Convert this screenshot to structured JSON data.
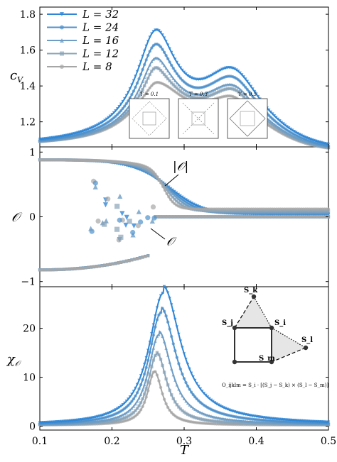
{
  "chart_data": [
    {
      "type": "line",
      "panel": "top",
      "ylabel": "c_V",
      "xlim": [
        0.1,
        0.5
      ],
      "ylim": [
        1.06,
        1.84
      ],
      "yticks": [
        "1.2",
        "1.4",
        "1.6",
        "1.8"
      ],
      "legend_position": "top-left",
      "series": [
        {
          "name": "L = 32",
          "color": "#2f86d6",
          "marker": "triangle-down",
          "peak1": 1.8,
          "peak2": 1.53
        },
        {
          "name": "L = 24",
          "color": "#4f92cc",
          "marker": "circle",
          "peak1": 1.73,
          "peak2": 1.49
        },
        {
          "name": "L = 16",
          "color": "#6d9cc4",
          "marker": "triangle-up",
          "peak1": 1.66,
          "peak2": 1.45
        },
        {
          "name": "L = 12",
          "color": "#8aa4b8",
          "marker": "square",
          "peak1": 1.61,
          "peak2": 1.43
        },
        {
          "name": "L = 8",
          "color": "#a6a6a6",
          "marker": "circle",
          "peak1": 1.53,
          "peak2": 1.39
        }
      ],
      "insets": [
        {
          "label": "T = 0.1"
        },
        {
          "label": "T = 0.3"
        },
        {
          "label": "T = 0.5"
        }
      ]
    },
    {
      "type": "scatter",
      "panel": "middle",
      "ylabel": "O",
      "xlim": [
        0.1,
        0.5
      ],
      "ylim": [
        -1.08,
        1.08
      ],
      "yticks": [
        "−1",
        "0",
        "1"
      ],
      "annotations": [
        "|O|",
        "O"
      ],
      "abs_O_high_T": {
        "L = 32": 0.04,
        "L = 24": 0.05,
        "L = 16": 0.07,
        "L = 12": 0.09,
        "L = 8": 0.12
      },
      "O_low_T_branches": [
        0.88,
        -0.82
      ]
    },
    {
      "type": "line",
      "panel": "bottom",
      "ylabel": "χ_O",
      "xlabel": "T",
      "xlim": [
        0.1,
        0.5
      ],
      "ylim": [
        -0.8,
        28.5
      ],
      "yticks": [
        "0",
        "10",
        "20"
      ],
      "xticks": [
        "0.1",
        "0.2",
        "0.3",
        "0.4",
        "0.5"
      ],
      "peaks": {
        "L = 32": 27.0,
        "L = 24": 23.0,
        "L = 16": 18.5,
        "L = 12": 14.5,
        "L = 8": 11.0
      },
      "inset": {
        "vertex_labels": [
          "S_k",
          "S_j",
          "S_i",
          "S_l",
          "S_m"
        ],
        "formula": "O_ijklm = S_i · [(S_j − S_k) × (S_l − S_m)]"
      }
    }
  ]
}
